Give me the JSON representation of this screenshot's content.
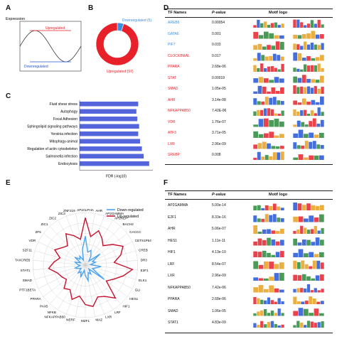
{
  "panels": {
    "A": "A",
    "B": "B",
    "C": "C",
    "D": "D",
    "E": "E",
    "F": "F"
  },
  "chart_data": [
    {
      "type": "line",
      "panel": "A",
      "title": "Expression",
      "annotations": [
        "Upregulated",
        "Downregulated"
      ],
      "colors": {
        "up": "#e8202a",
        "down": "#2255d6",
        "line": "#333333"
      }
    },
    {
      "type": "pie",
      "panel": "B",
      "donut": true,
      "labels": [
        "Downregulated (5)",
        "Upregulated (97)"
      ],
      "values": [
        5,
        97
      ],
      "colors": [
        "#3a8fe0",
        "#e8202a"
      ]
    },
    {
      "type": "bar",
      "panel": "C",
      "orientation": "horizontal",
      "categories": [
        "Fluid shear stress",
        "Autophagy",
        "Focal Adhesion",
        "Sphingolipid signaling pathways",
        "Yersinia infection",
        "Mitophagy-animal",
        "Regulation of actin cytoskeleton",
        "Salmonella infection",
        "Endocytosis"
      ],
      "values": [
        3.2,
        3.1,
        3.15,
        3.25,
        3.2,
        3.3,
        3.4,
        3.5,
        3.8
      ],
      "xlabel": "FDR (-log10)",
      "color": "#5566dd"
    },
    {
      "type": "table",
      "panel": "D",
      "columns": [
        "TF Names",
        "P-value",
        "Motif logo"
      ],
      "rows": [
        {
          "name": "AREB6",
          "p": "0.00054",
          "group": "down"
        },
        {
          "name": "GATA6",
          "p": "0.001",
          "group": "down"
        },
        {
          "name": "PIF7",
          "p": "0.033",
          "group": "down"
        },
        {
          "name": "CLOCKBMAL",
          "p": "0.017",
          "group": "up"
        },
        {
          "name": "PPARA",
          "p": "2.68e-06",
          "group": "up"
        },
        {
          "name": "STAT",
          "p": "0.00019",
          "group": "up"
        },
        {
          "name": "SMAD",
          "p": "1.05e-05",
          "group": "up"
        },
        {
          "name": "AHR",
          "p": "3.14e-08",
          "group": "up"
        },
        {
          "name": "NFKAPPAB50",
          "p": "7.42E-06",
          "group": "up"
        },
        {
          "name": "VDR",
          "p": "1.76e-07",
          "group": "up"
        },
        {
          "name": "ATF3",
          "p": "3.71e-05",
          "group": "up"
        },
        {
          "name": "LXR",
          "p": "2.96e-09",
          "group": "up"
        },
        {
          "name": "SREBP",
          "p": "0.008",
          "group": "up"
        }
      ],
      "colors": {
        "down": "#3a8fe0",
        "up": "#e8202a"
      }
    },
    {
      "type": "radar",
      "panel": "E",
      "series": [
        {
          "name": "Down-regulated",
          "color": "#4aa3f0"
        },
        {
          "name": "Up-regulated",
          "color": "#c8102e"
        }
      ],
      "axes": [
        "AHR",
        "AP2GAMMA",
        "AP2REP",
        "BACH2",
        "CACCC",
        "CETS1P54",
        "CREB",
        "DR3",
        "E2F1",
        "ELK1",
        "GLI",
        "HES1",
        "HIF1",
        "LRF",
        "LXR",
        "MAZ",
        "MZF1",
        "NERF",
        "NFKAPPAB50",
        "NFKB",
        "PAX5",
        "PPARA",
        "PTF1BETA",
        "SMAD",
        "STAT1",
        "TAXCREB",
        "SZF11",
        "VDR",
        "ZF5",
        "ZIC1",
        "ZIC2",
        "ZIC3",
        "ZNF219",
        "AP2ALPHA"
      ],
      "up_values": [
        0.55,
        0.7,
        0.6,
        0.5,
        0.65,
        0.8,
        0.7,
        0.55,
        0.9,
        0.75,
        0.6,
        0.5,
        0.85,
        0.7,
        0.65,
        0.8,
        0.75,
        0.6,
        0.7,
        0.55,
        0.6,
        0.45,
        0.5,
        0.55,
        0.7,
        0.6,
        0.5,
        0.65,
        0.55,
        0.5,
        0.7,
        0.6,
        0.5,
        0.9
      ],
      "down_values": [
        0.25,
        0.3,
        0.2,
        0.1,
        0.35,
        0.15,
        0.2,
        0.1,
        0.3,
        0.2,
        0.15,
        0.45,
        0.1,
        0.2,
        0.15,
        0.3,
        0.2,
        0.1,
        0.25,
        0.15,
        0.2,
        0.1,
        0.15,
        0.2,
        0.1,
        0.15,
        0.2,
        0.1,
        0.25,
        0.15,
        0.2,
        0.1,
        0.3,
        0.55
      ]
    },
    {
      "type": "table",
      "panel": "F",
      "columns": [
        "TF Names",
        "P-value",
        "Motif logo"
      ],
      "rows": [
        {
          "name": "AP2GAMMA",
          "p": "5.00e-14"
        },
        {
          "name": "E2F1",
          "p": "8.33e-16"
        },
        {
          "name": "AHR",
          "p": "5.06e-07"
        },
        {
          "name": "HES1",
          "p": "1.11e-11"
        },
        {
          "name": "HIF1",
          "p": "4.13e-10"
        },
        {
          "name": "LRF",
          "p": "8.54e-07"
        },
        {
          "name": "LXR",
          "p": "2.96e-09"
        },
        {
          "name": "NFKAPPAB50",
          "p": "7.42e-06"
        },
        {
          "name": "PPARA",
          "p": "2.68e-06"
        },
        {
          "name": "SMAD",
          "p": "1.06e-05"
        },
        {
          "name": "STAT1",
          "p": "4.83e-09"
        }
      ]
    }
  ],
  "logo_colors": [
    "#2a8a3a",
    "#2255d6",
    "#e8a020",
    "#e8202a"
  ]
}
